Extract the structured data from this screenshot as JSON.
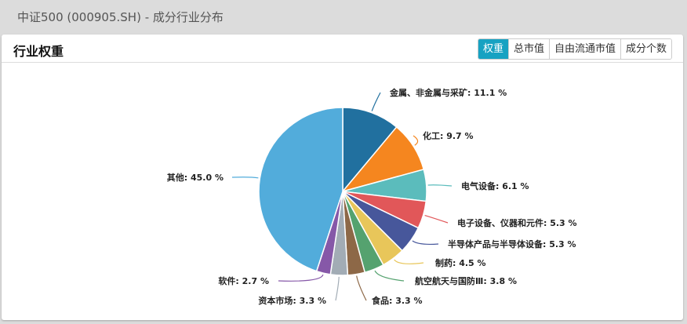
{
  "page": {
    "title": "中证500 (000905.SH) - 成分行业分布"
  },
  "panel": {
    "title": "行业权重",
    "tabs": [
      {
        "label": "权重",
        "active": true
      },
      {
        "label": "总市值",
        "active": false
      },
      {
        "label": "自由流通市值",
        "active": false
      },
      {
        "label": "成分个数",
        "active": false
      }
    ]
  },
  "chart_data": {
    "type": "pie",
    "title": "行业权重",
    "unit": "%",
    "start_angle": "12 o'clock, clockwise",
    "slices": [
      {
        "label": "金属、非金属与采矿",
        "value": 11.1,
        "color": "#21709f"
      },
      {
        "label": "化工",
        "value": 9.7,
        "color": "#f5861f"
      },
      {
        "label": "电气设备",
        "value": 6.1,
        "color": "#5bbcbc"
      },
      {
        "label": "电子设备、仪器和元件",
        "value": 5.3,
        "color": "#e15759"
      },
      {
        "label": "半导体产品与半导体设备",
        "value": 5.3,
        "color": "#47579b"
      },
      {
        "label": "制药",
        "value": 4.5,
        "color": "#e8c65a"
      },
      {
        "label": "航空航天与国防Ⅲ",
        "value": 3.8,
        "color": "#55a26f"
      },
      {
        "label": "食品",
        "value": 3.3,
        "color": "#8d6847"
      },
      {
        "label": "资本市场",
        "value": 3.3,
        "color": "#a2acb5"
      },
      {
        "label": "软件",
        "value": 2.7,
        "color": "#8658a8"
      },
      {
        "label": "其他",
        "value": 45.0,
        "color": "#52acdb"
      }
    ]
  }
}
